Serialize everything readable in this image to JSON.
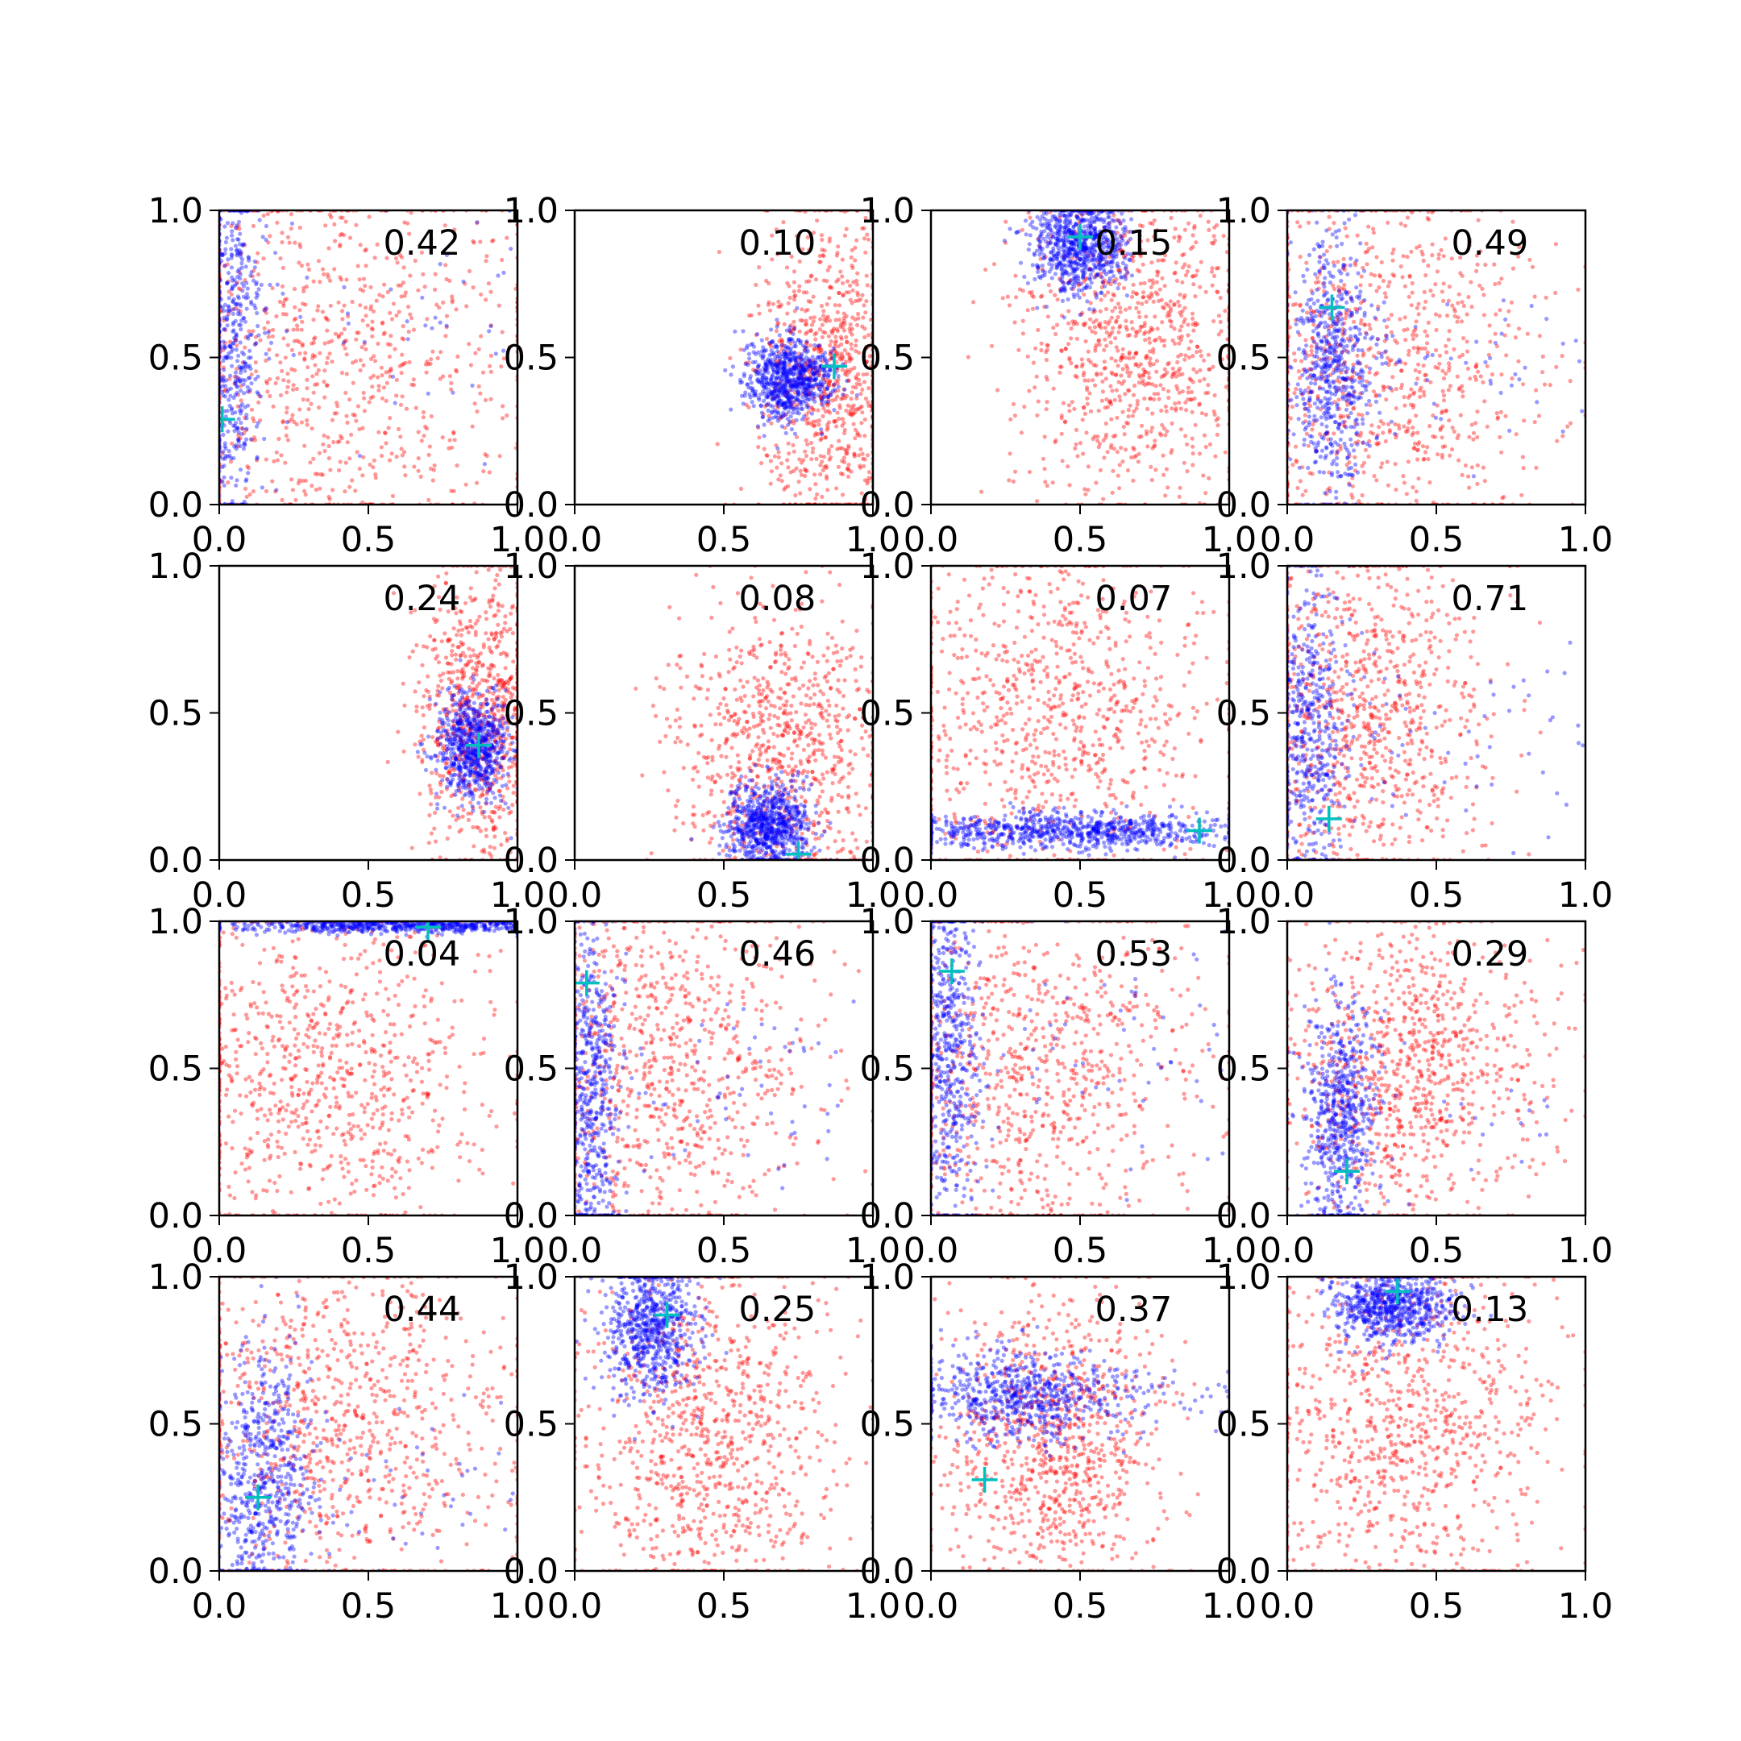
{
  "chart_data": {
    "type": "scatter",
    "layout": {
      "rows": 4,
      "cols": 4
    },
    "colors": {
      "blue_points": "#0000ff",
      "red_points": "#ff0000",
      "marker": "#00bfbf",
      "axes": "#000000"
    },
    "point_alpha": 0.4,
    "xlim": [
      0,
      1
    ],
    "ylim": [
      0,
      1
    ],
    "xticks": [
      "0.0",
      "0.5",
      "1.0"
    ],
    "yticks": [
      "0.0",
      "0.5",
      "1.0"
    ],
    "panels": [
      {
        "annotation": "0.42",
        "marker": [
          0.01,
          0.29
        ],
        "blue": {
          "cx": 0.05,
          "cy": 0.55,
          "sx": 0.05,
          "sy": 0.32,
          "n": 520,
          "tail": 0.12
        },
        "red": {
          "cx": 0.35,
          "cy": 0.5,
          "sx": 0.35,
          "sy": 0.35,
          "n": 900
        }
      },
      {
        "annotation": "0.10",
        "marker": [
          0.87,
          0.47
        ],
        "blue": {
          "cx": 0.72,
          "cy": 0.43,
          "sx": 0.07,
          "sy": 0.07,
          "n": 750
        },
        "red": {
          "cx": 0.85,
          "cy": 0.45,
          "sx": 0.12,
          "sy": 0.28,
          "n": 850
        }
      },
      {
        "annotation": "0.15",
        "marker": [
          0.5,
          0.91
        ],
        "blue": {
          "cx": 0.5,
          "cy": 0.88,
          "sx": 0.08,
          "sy": 0.08,
          "n": 750
        },
        "red": {
          "cx": 0.68,
          "cy": 0.55,
          "sx": 0.2,
          "sy": 0.28,
          "n": 900
        }
      },
      {
        "annotation": "0.49",
        "marker": [
          0.15,
          0.67
        ],
        "blue": {
          "cx": 0.15,
          "cy": 0.45,
          "sx": 0.07,
          "sy": 0.22,
          "n": 650,
          "tail": 0.1
        },
        "red": {
          "cx": 0.3,
          "cy": 0.5,
          "sx": 0.28,
          "sy": 0.3,
          "n": 900
        }
      },
      {
        "annotation": "0.24",
        "marker": [
          0.87,
          0.39
        ],
        "blue": {
          "cx": 0.85,
          "cy": 0.38,
          "sx": 0.06,
          "sy": 0.09,
          "n": 700
        },
        "red": {
          "cx": 0.88,
          "cy": 0.5,
          "sx": 0.1,
          "sy": 0.25,
          "n": 800
        }
      },
      {
        "annotation": "0.08",
        "marker": [
          0.75,
          0.02
        ],
        "blue": {
          "cx": 0.65,
          "cy": 0.12,
          "sx": 0.07,
          "sy": 0.07,
          "n": 750
        },
        "red": {
          "cx": 0.7,
          "cy": 0.35,
          "sx": 0.18,
          "sy": 0.25,
          "n": 850
        }
      },
      {
        "annotation": "0.07",
        "marker": [
          0.9,
          0.1
        ],
        "blue": {
          "cx": 0.45,
          "cy": 0.1,
          "sx": 0.28,
          "sy": 0.03,
          "n": 800
        },
        "red": {
          "cx": 0.4,
          "cy": 0.5,
          "sx": 0.28,
          "sy": 0.3,
          "n": 900
        }
      },
      {
        "annotation": "0.71",
        "marker": [
          0.14,
          0.14
        ],
        "blue": {
          "cx": 0.08,
          "cy": 0.45,
          "sx": 0.06,
          "sy": 0.28,
          "n": 550,
          "tail": 0.15
        },
        "red": {
          "cx": 0.25,
          "cy": 0.5,
          "sx": 0.22,
          "sy": 0.3,
          "n": 900
        }
      },
      {
        "annotation": "0.04",
        "marker": [
          0.7,
          0.98
        ],
        "blue": {
          "cx": 0.65,
          "cy": 0.985,
          "sx": 0.28,
          "sy": 0.012,
          "n": 650
        },
        "red": {
          "cx": 0.35,
          "cy": 0.5,
          "sx": 0.3,
          "sy": 0.3,
          "n": 900
        }
      },
      {
        "annotation": "0.46",
        "marker": [
          0.04,
          0.79
        ],
        "blue": {
          "cx": 0.05,
          "cy": 0.4,
          "sx": 0.05,
          "sy": 0.3,
          "n": 650,
          "tail": 0.12
        },
        "red": {
          "cx": 0.3,
          "cy": 0.5,
          "sx": 0.28,
          "sy": 0.32,
          "n": 900
        }
      },
      {
        "annotation": "0.53",
        "marker": [
          0.07,
          0.83
        ],
        "blue": {
          "cx": 0.06,
          "cy": 0.55,
          "sx": 0.05,
          "sy": 0.32,
          "n": 600,
          "tail": 0.12
        },
        "red": {
          "cx": 0.35,
          "cy": 0.5,
          "sx": 0.3,
          "sy": 0.32,
          "n": 900
        }
      },
      {
        "annotation": "0.29",
        "marker": [
          0.2,
          0.15
        ],
        "blue": {
          "cx": 0.18,
          "cy": 0.32,
          "sx": 0.06,
          "sy": 0.2,
          "n": 650,
          "tail": 0.05
        },
        "red": {
          "cx": 0.4,
          "cy": 0.5,
          "sx": 0.22,
          "sy": 0.25,
          "n": 900
        }
      },
      {
        "annotation": "0.44",
        "marker": [
          0.13,
          0.25
        ],
        "blue": {
          "cx": 0.15,
          "cy": 0.3,
          "sx": 0.08,
          "sy": 0.22,
          "n": 650,
          "tail": 0.1
        },
        "red": {
          "cx": 0.4,
          "cy": 0.5,
          "sx": 0.3,
          "sy": 0.3,
          "n": 900
        }
      },
      {
        "annotation": "0.25",
        "marker": [
          0.31,
          0.87
        ],
        "blue": {
          "cx": 0.25,
          "cy": 0.82,
          "sx": 0.08,
          "sy": 0.12,
          "n": 700
        },
        "red": {
          "cx": 0.45,
          "cy": 0.45,
          "sx": 0.22,
          "sy": 0.3,
          "n": 900
        }
      },
      {
        "annotation": "0.37",
        "marker": [
          0.18,
          0.31
        ],
        "blue": {
          "cx": 0.3,
          "cy": 0.6,
          "sx": 0.18,
          "sy": 0.08,
          "n": 700,
          "tail": 0.1
        },
        "red": {
          "cx": 0.4,
          "cy": 0.45,
          "sx": 0.18,
          "sy": 0.25,
          "n": 900
        }
      },
      {
        "annotation": "0.13",
        "marker": [
          0.37,
          0.95
        ],
        "blue": {
          "cx": 0.35,
          "cy": 0.9,
          "sx": 0.1,
          "sy": 0.06,
          "n": 700
        },
        "red": {
          "cx": 0.4,
          "cy": 0.5,
          "sx": 0.25,
          "sy": 0.3,
          "n": 900
        }
      }
    ]
  }
}
